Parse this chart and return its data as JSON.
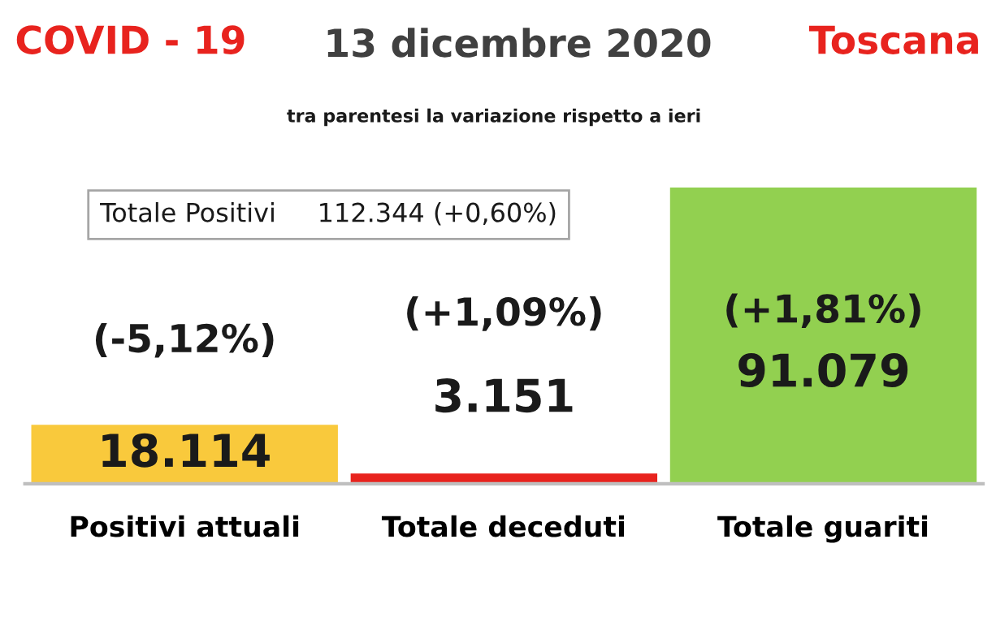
{
  "chart_data": {
    "type": "bar",
    "title": "13 dicembre 2020",
    "subtitle": "tra parentesi la variazione rispetto a ieri",
    "categories": [
      "Positivi attuali",
      "Totale deceduti",
      "Totale guariti"
    ],
    "values": [
      18114,
      3151,
      91079
    ],
    "value_labels": [
      "18.114",
      "3.151",
      "91.079"
    ],
    "colors": [
      "#f9c93c",
      "#e8231e",
      "#92d050"
    ],
    "annotations": [
      {
        "text": "COVID - 19"
      },
      {
        "text": "Toscana"
      },
      {
        "text": "Totale Positivi     112.344 (+0,60%)"
      },
      "(-5,12%)",
      "(+1,09%)",
      "(+1,81%)"
    ],
    "grid": false,
    "legend": false
  }
}
